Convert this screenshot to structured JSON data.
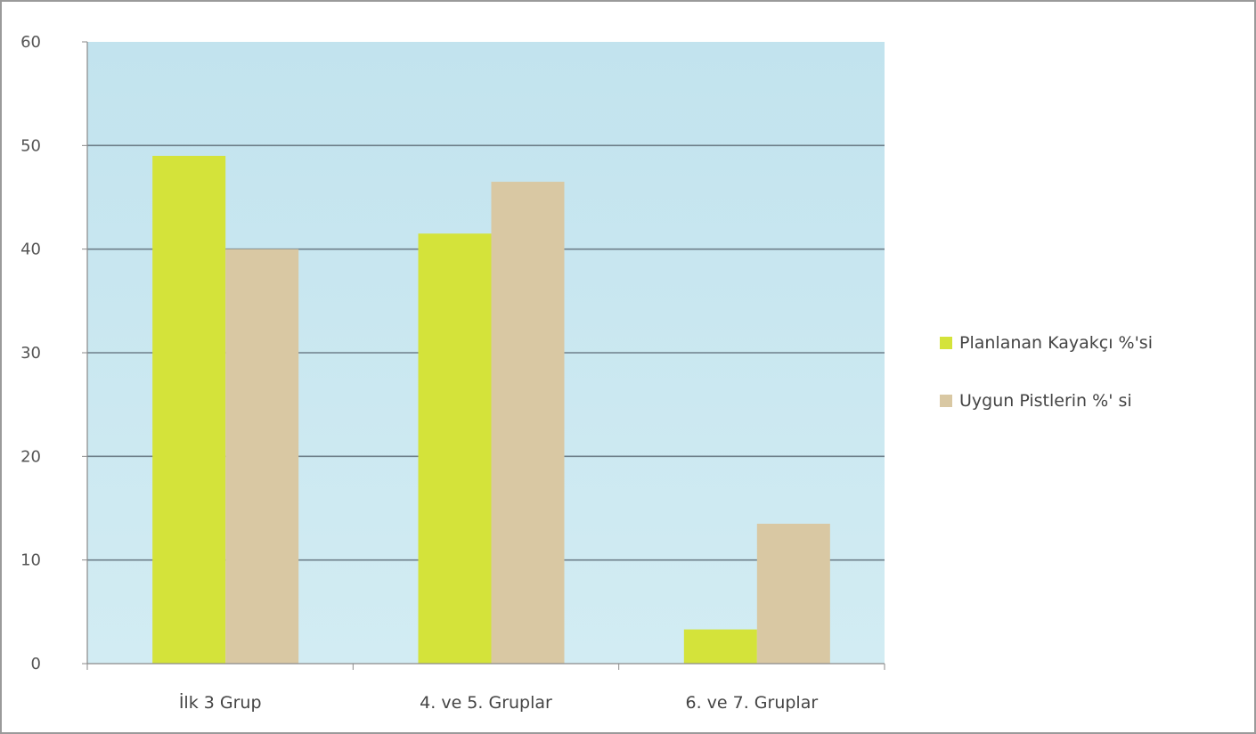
{
  "chart_data": {
    "type": "bar",
    "categories": [
      "İlk 3 Grup",
      "4. ve 5. Gruplar",
      "6. ve 7. Gruplar"
    ],
    "series": [
      {
        "name": "Planlanan Kayakçı %'si",
        "values": [
          49,
          41.5,
          3.3
        ],
        "color": "#d4e33a"
      },
      {
        "name": "Uygun Pistlerin %' si",
        "values": [
          40,
          46.5,
          13.5
        ],
        "color": "#d9c8a3"
      }
    ],
    "ylim": [
      0,
      60
    ],
    "yticks": [
      "0",
      "10",
      "20",
      "30",
      "40",
      "50",
      "60"
    ],
    "grid": true,
    "legend_position": "right",
    "plot_background": "#c8e6ef",
    "gridline_color": "#6e7f8a"
  }
}
